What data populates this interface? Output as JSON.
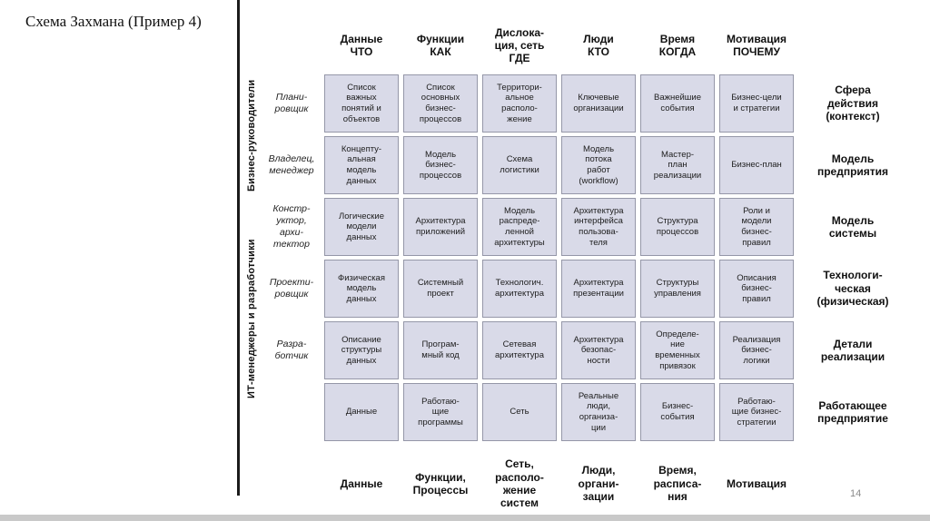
{
  "slide": {
    "title": "Схема Захмана (Пример 4)",
    "page_number": "14"
  },
  "left_groups": [
    {
      "label": "Бизнес-руководители"
    },
    {
      "label": "ИТ-менеджеры и разработчики"
    }
  ],
  "columns": [
    {
      "header": "Данные\nЧТО",
      "footer": "Данные"
    },
    {
      "header": "Функции\nКАК",
      "footer": "Функции,\nПроцессы"
    },
    {
      "header": "Дислока-\nция, сеть\nГДЕ",
      "footer": "Сеть,\nрасполо-\nжение\nсистем"
    },
    {
      "header": "Люди\nКТО",
      "footer": "Люди,\nоргани-\nзации"
    },
    {
      "header": "Время\nКОГДА",
      "footer": "Время,\nрасписа-\nния"
    },
    {
      "header": "Мотивация\nПОЧЕМУ",
      "footer": "Мотивация"
    }
  ],
  "rows": [
    {
      "role": "Плани-\nровщик",
      "scope": "Сфера\nдействия\n(контекст)",
      "cells": [
        "Список\nважных\nпонятий и\nобъектов",
        "Список\nосновных\nбизнес-\nпроцессов",
        "Территори-\nальное\nрасполо-\nжение",
        "Ключевые\nорганизации",
        "Важнейшие\nсобытия",
        "Бизнес-цели\nи стратегии"
      ]
    },
    {
      "role": "Владелец,\nменеджер",
      "scope": "Модель\nпредприятия",
      "cells": [
        "Концепту-\nальная\nмодель\nданных",
        "Модель\nбизнес-\nпроцессов",
        "Схема\nлогистики",
        "Модель\nпотока\nработ\n(workflow)",
        "Мастер-\nплан\nреализации",
        "Бизнес-план"
      ]
    },
    {
      "role": "Констр-\nуктор,\nархи-\nтектор",
      "scope": "Модель\nсистемы",
      "cells": [
        "Логические\nмодели\nданных",
        "Архитектура\nприложений",
        "Модель\nраспреде-\nленной\nархитектуры",
        "Архитектура\nинтерфейса\nпользова-\nтеля",
        "Структура\nпроцессов",
        "Роли и\nмодели\nбизнес-\nправил"
      ]
    },
    {
      "role": "Проекти-\nровщик",
      "scope": "Технологи-\nческая\n(физическая)",
      "cells": [
        "Физическая\nмодель\nданных",
        "Системный\nпроект",
        "Технологич.\nархитектура",
        "Архитектура\nпрезентации",
        "Структуры\nуправления",
        "Описания\nбизнес-\nправил"
      ]
    },
    {
      "role": "Разра-\nботчик",
      "scope": "Детали\nреализации",
      "cells": [
        "Описание\nструктуры\nданных",
        "Програм-\nмный код",
        "Сетевая\nархитектура",
        "Архитектура\nбезопас-\nности",
        "Определе-\nние\nвременных\nпривязок",
        "Реализация\nбизнес-\nлогики"
      ]
    },
    {
      "role": "",
      "scope": "Работающее\nпредприятие",
      "cells": [
        "Данные",
        "Работаю-\nщие\nпрограммы",
        "Сеть",
        "Реальные\nлюди,\nорганиза-\nции",
        "Бизнес-\nсобытия",
        "Работаю-\nщие бизнес-\nстратегии"
      ]
    }
  ]
}
